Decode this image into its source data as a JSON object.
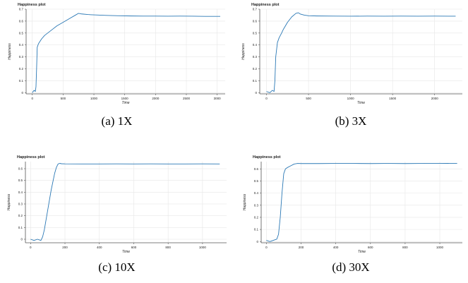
{
  "style": {
    "line_color": "#2a78b5",
    "grid_color": "#e6e6e6",
    "axis_color": "#555555",
    "text_color": "#222222"
  },
  "chart_data": [
    {
      "type": "line",
      "title": "Happiness plot",
      "xlabel": "Time",
      "ylabel": "Happiness",
      "caption": "(a) 1X",
      "grid": true,
      "xlim": [
        -100,
        3130
      ],
      "ylim": [
        -0.01,
        0.7
      ],
      "xticks": [
        0,
        500,
        1000,
        1500,
        2000,
        2500,
        3000
      ],
      "yticks": [
        0,
        0.1,
        0.2,
        0.3,
        0.4,
        0.5,
        0.6,
        0.7
      ],
      "x": [
        0,
        30,
        50,
        60,
        70,
        80,
        100,
        150,
        200,
        300,
        400,
        500,
        600,
        700,
        750,
        800,
        900,
        1000,
        1200,
        1400,
        1600,
        1800,
        2000,
        2200,
        2400,
        2600,
        2800,
        3000,
        3050
      ],
      "y": [
        0.0,
        0.02,
        0.01,
        0.05,
        0.2,
        0.38,
        0.41,
        0.45,
        0.48,
        0.52,
        0.56,
        0.59,
        0.62,
        0.65,
        0.665,
        0.66,
        0.655,
        0.652,
        0.648,
        0.645,
        0.643,
        0.642,
        0.642,
        0.641,
        0.642,
        0.641,
        0.64,
        0.64,
        0.64
      ]
    },
    {
      "type": "line",
      "title": "Happiness plot",
      "xlabel": "Time",
      "ylabel": "Happiness",
      "caption": "(b) 3X",
      "grid": true,
      "xlim": [
        -80,
        2330
      ],
      "ylim": [
        -0.01,
        0.7
      ],
      "xticks": [
        0,
        500,
        1000,
        1500,
        2000
      ],
      "yticks": [
        0,
        0.1,
        0.2,
        0.3,
        0.4,
        0.5,
        0.6,
        0.7
      ],
      "x": [
        0,
        40,
        70,
        90,
        100,
        110,
        130,
        150,
        180,
        200,
        250,
        300,
        350,
        380,
        400,
        450,
        500,
        600,
        800,
        1000,
        1200,
        1400,
        1600,
        1800,
        2000,
        2200,
        2250
      ],
      "y": [
        0.01,
        0.0,
        0.02,
        0.01,
        0.1,
        0.3,
        0.42,
        0.46,
        0.5,
        0.53,
        0.59,
        0.635,
        0.665,
        0.67,
        0.66,
        0.65,
        0.645,
        0.643,
        0.642,
        0.641,
        0.642,
        0.641,
        0.642,
        0.641,
        0.642,
        0.641,
        0.641
      ]
    },
    {
      "type": "line",
      "title": "Happiness plot",
      "xlabel": "Time",
      "ylabel": "Happiness",
      "caption": "(c) 10X",
      "grid": true,
      "xlim": [
        -30,
        1140
      ],
      "ylim": [
        -0.03,
        0.66
      ],
      "xticks": [
        0,
        200,
        400,
        600,
        800,
        1000
      ],
      "yticks": [
        0,
        0.1,
        0.2,
        0.3,
        0.4,
        0.5,
        0.6
      ],
      "x": [
        0,
        20,
        40,
        60,
        70,
        80,
        100,
        120,
        140,
        150,
        160,
        170,
        180,
        200,
        300,
        400,
        500,
        600,
        700,
        800,
        900,
        1000,
        1100
      ],
      "y": [
        0.0,
        -0.01,
        0.0,
        -0.01,
        0.02,
        0.08,
        0.25,
        0.42,
        0.56,
        0.61,
        0.64,
        0.645,
        0.642,
        0.641,
        0.64,
        0.64,
        0.641,
        0.64,
        0.641,
        0.64,
        0.64,
        0.641,
        0.64
      ]
    },
    {
      "type": "line",
      "title": "Happiness plot",
      "xlabel": "Time",
      "ylabel": "Happiness",
      "caption": "(d) 30X",
      "grid": true,
      "xlim": [
        -30,
        1130
      ],
      "ylim": [
        -0.01,
        0.66
      ],
      "xticks": [
        0,
        200,
        400,
        600,
        800,
        1000
      ],
      "yticks": [
        0,
        0.1,
        0.2,
        0.3,
        0.4,
        0.5,
        0.6
      ],
      "x": [
        0,
        20,
        40,
        60,
        70,
        80,
        90,
        100,
        110,
        120,
        140,
        160,
        180,
        200,
        300,
        400,
        500,
        600,
        700,
        800,
        900,
        1000,
        1100
      ],
      "y": [
        0.01,
        0.0,
        0.01,
        0.02,
        0.06,
        0.2,
        0.4,
        0.56,
        0.6,
        0.61,
        0.625,
        0.64,
        0.645,
        0.644,
        0.644,
        0.645,
        0.645,
        0.644,
        0.645,
        0.644,
        0.645,
        0.646,
        0.645
      ]
    }
  ]
}
